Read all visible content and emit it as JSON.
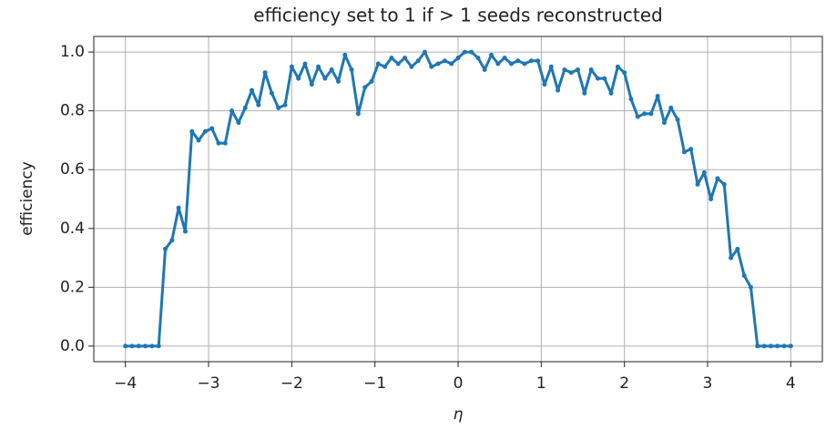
{
  "chart_data": {
    "type": "line",
    "title": "efficiency set to 1 if > 1 seeds reconstructed",
    "xlabel": "η",
    "ylabel": "efficiency",
    "x": [
      -4,
      -3.92,
      -3.84,
      -3.76,
      -3.68,
      -3.6,
      -3.52,
      -3.44,
      -3.36,
      -3.28,
      -3.2,
      -3.12,
      -3.04,
      -2.96,
      -2.88,
      -2.8,
      -2.72,
      -2.64,
      -2.56,
      -2.48,
      -2.4,
      -2.32,
      -2.24,
      -2.16,
      -2.08,
      -2,
      -1.92,
      -1.84,
      -1.76,
      -1.68,
      -1.6,
      -1.52,
      -1.44,
      -1.36,
      -1.28,
      -1.2,
      -1.12,
      -1.04,
      -0.96,
      -0.88,
      -0.8,
      -0.72,
      -0.64,
      -0.56,
      -0.48,
      -0.4,
      -0.32,
      -0.24,
      -0.16,
      -0.08,
      0,
      0.08,
      0.16,
      0.24,
      0.32,
      0.4,
      0.48,
      0.56,
      0.64,
      0.72,
      0.8,
      0.88,
      0.96,
      1.04,
      1.12,
      1.2,
      1.28,
      1.36,
      1.44,
      1.52,
      1.6,
      1.68,
      1.76,
      1.84,
      1.92,
      2,
      2.08,
      2.16,
      2.24,
      2.32,
      2.4,
      2.48,
      2.56,
      2.64,
      2.72,
      2.8,
      2.88,
      2.96,
      3.04,
      3.12,
      3.2,
      3.28,
      3.36,
      3.44,
      3.52,
      3.6,
      3.68,
      3.76,
      3.84,
      3.92,
      4
    ],
    "series": [
      {
        "color": "#1f77b4",
        "values": [
          0,
          0,
          0,
          0,
          0,
          0,
          0.33,
          0.36,
          0.47,
          0.39,
          0.73,
          0.7,
          0.73,
          0.74,
          0.69,
          0.69,
          0.8,
          0.76,
          0.81,
          0.87,
          0.82,
          0.93,
          0.86,
          0.81,
          0.82,
          0.95,
          0.91,
          0.96,
          0.89,
          0.95,
          0.91,
          0.94,
          0.9,
          0.99,
          0.94,
          0.79,
          0.88,
          0.9,
          0.96,
          0.95,
          0.98,
          0.96,
          0.98,
          0.95,
          0.97,
          1,
          0.95,
          0.96,
          0.97,
          0.96,
          0.98,
          1,
          1,
          0.98,
          0.94,
          0.99,
          0.96,
          0.98,
          0.96,
          0.97,
          0.96,
          0.97,
          0.97,
          0.89,
          0.95,
          0.87,
          0.94,
          0.93,
          0.94,
          0.86,
          0.94,
          0.91,
          0.91,
          0.86,
          0.95,
          0.93,
          0.84,
          0.78,
          0.79,
          0.79,
          0.85,
          0.76,
          0.81,
          0.77,
          0.66,
          0.67,
          0.55,
          0.59,
          0.5,
          0.57,
          0.55,
          0.3,
          0.33,
          0.24,
          0.2,
          0,
          0,
          0,
          0,
          0,
          0
        ]
      }
    ],
    "xlim": [
      -4.38,
      4.38
    ],
    "ylim": [
      -0.053,
      1.053
    ],
    "xticks": [
      {
        "value": -4,
        "label": "−4"
      },
      {
        "value": -3,
        "label": "−3"
      },
      {
        "value": -2,
        "label": "−2"
      },
      {
        "value": -1,
        "label": "−1"
      },
      0,
      1,
      2,
      3,
      4
    ],
    "yticks": [
      {
        "value": 0,
        "label": "0.0"
      },
      {
        "value": 0.2,
        "label": "0.2"
      },
      {
        "value": 0.4,
        "label": "0.4"
      },
      {
        "value": 0.6,
        "label": "0.6"
      },
      {
        "value": 0.8,
        "label": "0.8"
      },
      {
        "value": 1,
        "label": "1.0"
      }
    ],
    "grid": true
  }
}
